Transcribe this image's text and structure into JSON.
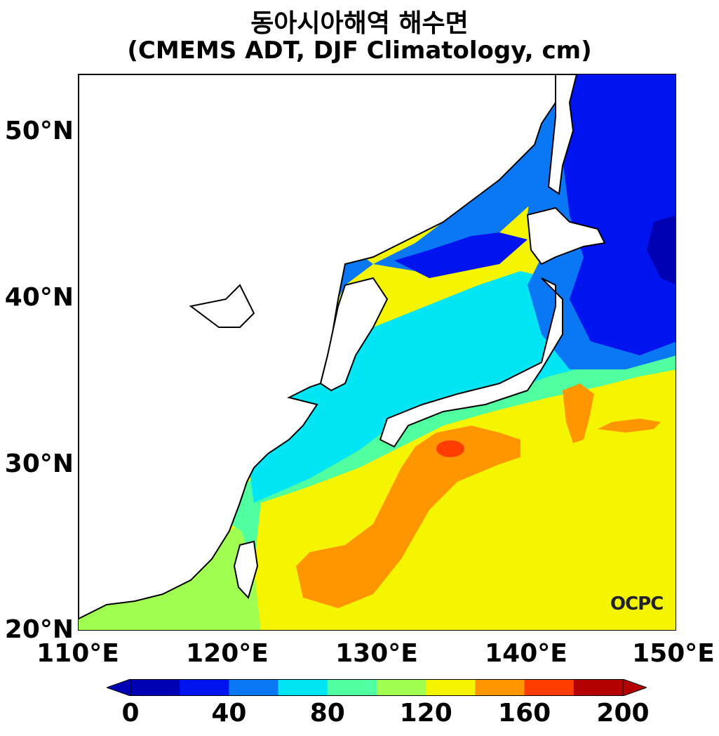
{
  "title": {
    "line1": "동아시아해역 해수면",
    "line2": "(CMEMS ADT, DJF Climatology, cm)"
  },
  "map": {
    "lon_range": [
      110,
      150
    ],
    "lat_range": [
      20,
      53.5
    ],
    "lat_ticks": [
      "50°N",
      "40°N",
      "30°N",
      "20°N"
    ],
    "lon_ticks": [
      "110°E",
      "120°E",
      "130°E",
      "140°E",
      "150°E"
    ],
    "land_color": "#ffffff",
    "coastline_color": "#000000"
  },
  "colorbar": {
    "ticks": [
      "0",
      "40",
      "80",
      "120",
      "160",
      "200"
    ],
    "levels": [
      0,
      20,
      40,
      60,
      80,
      100,
      120,
      140,
      160,
      180,
      200
    ],
    "colors": [
      "#0000b4",
      "#0014f0",
      "#0a78f5",
      "#00e6f5",
      "#50ffa0",
      "#a0ff50",
      "#f5f500",
      "#ff9600",
      "#ff3c00",
      "#b40000"
    ],
    "extend": "both"
  },
  "logo": {
    "text": "OCPC"
  }
}
